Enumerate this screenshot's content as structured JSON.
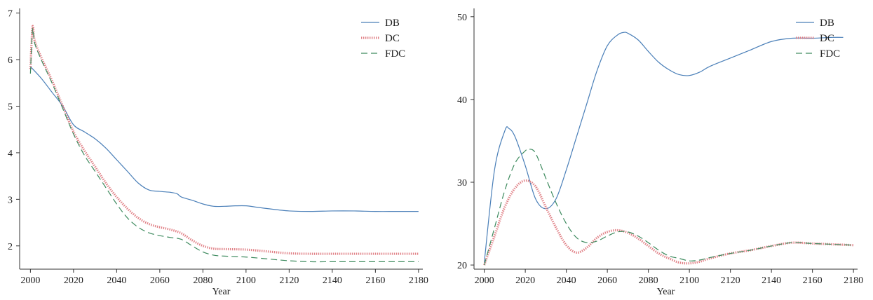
{
  "colors": {
    "DB": "#4a7fb8",
    "DC": "#e07f85",
    "FDC": "#3d8a5e",
    "axis": "#333333"
  },
  "chart_data": [
    {
      "type": "line",
      "xlabel": "Year",
      "ylabel": "",
      "xlim": [
        1995,
        2182
      ],
      "ylim": [
        1.5,
        7.1
      ],
      "xticks": [
        "2000",
        "2020",
        "2040",
        "2060",
        "2080",
        "2100",
        "2120",
        "2140",
        "2160",
        "2180"
      ],
      "yticks": [
        "2",
        "3",
        "4",
        "5",
        "6",
        "7"
      ],
      "legend_position": "top-right",
      "series": [
        {
          "name": "DB",
          "style": "solid",
          "x": [
            2000,
            2005,
            2010,
            2015,
            2020,
            2025,
            2030,
            2035,
            2040,
            2045,
            2050,
            2055,
            2060,
            2065,
            2068,
            2070,
            2075,
            2080,
            2085,
            2090,
            2095,
            2100,
            2105,
            2110,
            2120,
            2130,
            2140,
            2150,
            2160,
            2170,
            2180
          ],
          "y": [
            5.85,
            5.6,
            5.3,
            5.0,
            4.6,
            4.45,
            4.3,
            4.1,
            3.85,
            3.6,
            3.35,
            3.2,
            3.17,
            3.15,
            3.12,
            3.05,
            2.98,
            2.9,
            2.85,
            2.85,
            2.86,
            2.86,
            2.83,
            2.8,
            2.75,
            2.74,
            2.75,
            2.75,
            2.74,
            2.74,
            2.74
          ]
        },
        {
          "name": "DC",
          "style": "dotted",
          "x": [
            2000,
            2001,
            2002,
            2005,
            2010,
            2015,
            2020,
            2025,
            2030,
            2035,
            2040,
            2045,
            2050,
            2055,
            2060,
            2065,
            2070,
            2075,
            2080,
            2085,
            2090,
            2100,
            2110,
            2120,
            2130,
            2140,
            2150,
            2160,
            2170,
            2180
          ],
          "y": [
            5.8,
            6.7,
            6.4,
            6.05,
            5.55,
            5.0,
            4.45,
            4.05,
            3.7,
            3.35,
            3.05,
            2.8,
            2.6,
            2.47,
            2.4,
            2.35,
            2.27,
            2.12,
            2.0,
            1.94,
            1.93,
            1.92,
            1.88,
            1.84,
            1.83,
            1.83,
            1.83,
            1.83,
            1.83,
            1.83
          ]
        },
        {
          "name": "FDC",
          "style": "dashed",
          "x": [
            2000,
            2001,
            2002,
            2005,
            2010,
            2015,
            2020,
            2025,
            2030,
            2035,
            2040,
            2045,
            2050,
            2055,
            2060,
            2065,
            2070,
            2075,
            2080,
            2085,
            2090,
            2100,
            2110,
            2120,
            2130,
            2140,
            2150,
            2160,
            2170,
            2180
          ],
          "y": [
            5.7,
            6.65,
            6.35,
            6.0,
            5.5,
            4.95,
            4.4,
            3.95,
            3.6,
            3.25,
            2.9,
            2.6,
            2.4,
            2.28,
            2.22,
            2.18,
            2.14,
            2.0,
            1.87,
            1.8,
            1.78,
            1.76,
            1.72,
            1.68,
            1.66,
            1.66,
            1.66,
            1.66,
            1.66,
            1.66
          ]
        }
      ]
    },
    {
      "type": "line",
      "xlabel": "Year",
      "ylabel": "",
      "xlim": [
        1995,
        2182
      ],
      "ylim": [
        19.5,
        51
      ],
      "xticks": [
        "2000",
        "2020",
        "2040",
        "2060",
        "2080",
        "2100",
        "2120",
        "2140",
        "2160",
        "2180"
      ],
      "yticks": [
        "20",
        "30",
        "40",
        "50"
      ],
      "legend_position": "top-right",
      "series": [
        {
          "name": "DB",
          "style": "solid",
          "x": [
            2000,
            2005,
            2010,
            2012,
            2015,
            2020,
            2025,
            2030,
            2035,
            2040,
            2045,
            2050,
            2055,
            2060,
            2065,
            2068,
            2070,
            2075,
            2080,
            2085,
            2090,
            2095,
            2100,
            2105,
            2110,
            2120,
            2130,
            2140,
            2150,
            2160,
            2170,
            2175
          ],
          "y": [
            20.3,
            31.5,
            36.2,
            36.5,
            35.5,
            32.0,
            28.0,
            26.8,
            28.0,
            31.5,
            35.5,
            39.5,
            43.5,
            46.5,
            47.8,
            48.1,
            48.0,
            47.2,
            45.8,
            44.5,
            43.6,
            43.0,
            42.9,
            43.3,
            44.0,
            45.0,
            46.0,
            47.0,
            47.4,
            47.4,
            47.5,
            47.5
          ]
        },
        {
          "name": "DC",
          "style": "dotted",
          "x": [
            2000,
            2005,
            2010,
            2015,
            2020,
            2025,
            2030,
            2035,
            2040,
            2045,
            2050,
            2055,
            2060,
            2065,
            2070,
            2075,
            2080,
            2085,
            2090,
            2095,
            2100,
            2105,
            2110,
            2120,
            2130,
            2140,
            2150,
            2160,
            2170,
            2180
          ],
          "y": [
            20.0,
            23.5,
            27.0,
            29.3,
            30.2,
            29.5,
            27.0,
            24.5,
            22.4,
            21.5,
            22.1,
            23.3,
            24.0,
            24.2,
            23.9,
            23.2,
            22.3,
            21.4,
            20.8,
            20.3,
            20.2,
            20.4,
            20.8,
            21.4,
            21.8,
            22.3,
            22.7,
            22.6,
            22.5,
            22.4
          ]
        },
        {
          "name": "FDC",
          "style": "dashed",
          "x": [
            2000,
            2005,
            2010,
            2015,
            2020,
            2022,
            2025,
            2030,
            2035,
            2040,
            2045,
            2050,
            2055,
            2060,
            2065,
            2070,
            2075,
            2080,
            2085,
            2090,
            2095,
            2100,
            2105,
            2110,
            2120,
            2130,
            2140,
            2150,
            2160,
            2170,
            2180
          ],
          "y": [
            20.0,
            24.5,
            29.0,
            32.3,
            33.8,
            34.0,
            33.5,
            30.5,
            27.5,
            25.0,
            23.3,
            22.7,
            22.9,
            23.5,
            24.0,
            24.0,
            23.5,
            22.7,
            21.8,
            21.1,
            20.8,
            20.5,
            20.6,
            20.9,
            21.4,
            21.8,
            22.3,
            22.7,
            22.6,
            22.5,
            22.4
          ]
        }
      ]
    }
  ]
}
